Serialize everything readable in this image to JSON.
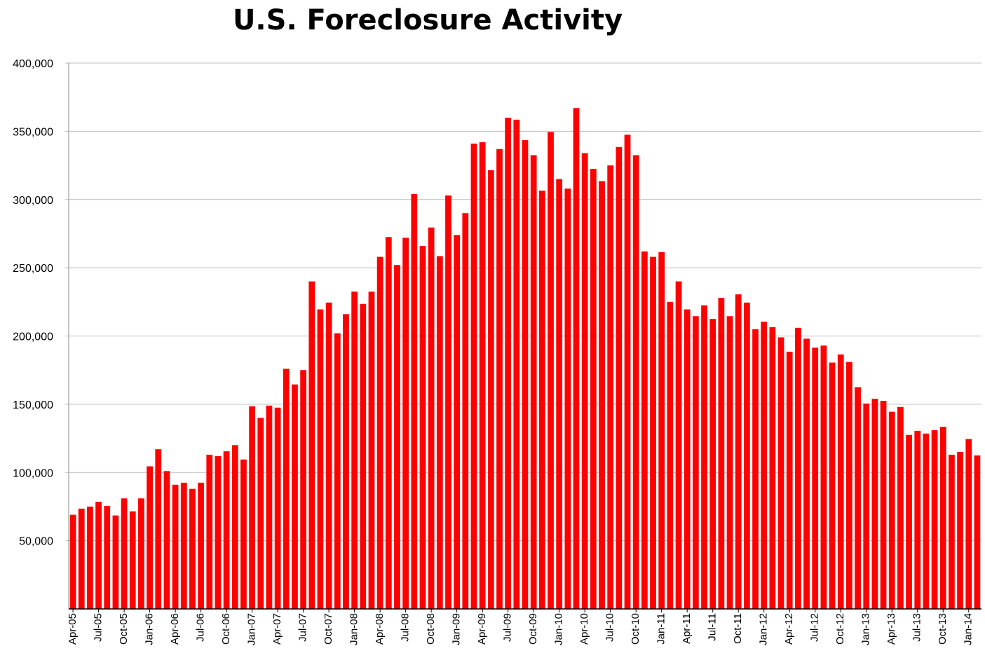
{
  "chart_data": {
    "type": "bar",
    "title": "U.S. Foreclosure Activity",
    "xlabel": "",
    "ylabel": "",
    "ylim": [
      0,
      400000
    ],
    "yticks": [
      50000,
      100000,
      150000,
      200000,
      250000,
      300000,
      350000,
      400000
    ],
    "ytick_labels": [
      "50,000",
      "100,000",
      "150,000",
      "200,000",
      "250,000",
      "300,000",
      "350,000",
      "400,000"
    ],
    "grid": true,
    "bar_color": "#ff0000",
    "categories": [
      "Apr-05",
      "May-05",
      "Jun-05",
      "Jul-05",
      "Aug-05",
      "Sep-05",
      "Oct-05",
      "Nov-05",
      "Dec-05",
      "Jan-06",
      "Feb-06",
      "Mar-06",
      "Apr-06",
      "May-06",
      "Jun-06",
      "Jul-06",
      "Aug-06",
      "Sep-06",
      "Oct-06",
      "Nov-06",
      "Dec-06",
      "Jan-07",
      "Feb-07",
      "Mar-07",
      "Apr-07",
      "May-07",
      "Jun-07",
      "Jul-07",
      "Aug-07",
      "Sep-07",
      "Oct-07",
      "Nov-07",
      "Dec-07",
      "Jan-08",
      "Feb-08",
      "Mar-08",
      "Apr-08",
      "May-08",
      "Jun-08",
      "Jul-08",
      "Aug-08",
      "Sep-08",
      "Oct-08",
      "Nov-08",
      "Dec-08",
      "Jan-09",
      "Feb-09",
      "Mar-09",
      "Apr-09",
      "May-09",
      "Jun-09",
      "Jul-09",
      "Aug-09",
      "Sep-09",
      "Oct-09",
      "Nov-09",
      "Dec-09",
      "Jan-10",
      "Feb-10",
      "Mar-10",
      "Apr-10",
      "May-10",
      "Jun-10",
      "Jul-10",
      "Aug-10",
      "Sep-10",
      "Oct-10",
      "Nov-10",
      "Dec-10",
      "Jan-11",
      "Feb-11",
      "Mar-11",
      "Apr-11",
      "May-11",
      "Jun-11",
      "Jul-11",
      "Aug-11",
      "Sep-11",
      "Oct-11",
      "Nov-11",
      "Dec-11",
      "Jan-12",
      "Feb-12",
      "Mar-12",
      "Apr-12",
      "May-12",
      "Jun-12",
      "Jul-12",
      "Aug-12",
      "Sep-12",
      "Oct-12",
      "Nov-12",
      "Dec-12",
      "Jan-13",
      "Feb-13",
      "Mar-13",
      "Apr-13",
      "May-13",
      "Jun-13",
      "Jul-13",
      "Aug-13",
      "Sep-13",
      "Oct-13",
      "Nov-13",
      "Dec-13",
      "Jan-14",
      "Feb-14"
    ],
    "xtick_labels": [
      "Apr-05",
      "Jul-05",
      "Oct-05",
      "Jan-06",
      "Apr-06",
      "Jul-06",
      "Oct-06",
      "Jan-07",
      "Apr-07",
      "Jul-07",
      "Oct-07",
      "Jan-08",
      "Apr-08",
      "Jul-08",
      "Oct-08",
      "Jan-09",
      "Apr-09",
      "Jul-09",
      "Oct-09",
      "Jan-10",
      "Apr-10",
      "Jul-10",
      "Oct-10",
      "Jan-11",
      "Apr-11",
      "Jul-11",
      "Oct-11",
      "Jan-12",
      "Apr-12",
      "Jul-12",
      "Oct-12",
      "Jan-13",
      "Apr-13",
      "Jul-13",
      "Oct-13",
      "Jan-14"
    ],
    "values": [
      69000,
      73500,
      75000,
      78500,
      75500,
      68500,
      81000,
      71500,
      81000,
      104500,
      117000,
      101000,
      91000,
      92500,
      88000,
      92500,
      113000,
      112000,
      115500,
      120000,
      109500,
      148500,
      140000,
      149000,
      147500,
      176000,
      164500,
      175000,
      240000,
      219500,
      224500,
      202000,
      216000,
      232500,
      223500,
      232500,
      258000,
      272500,
      252000,
      272000,
      304000,
      266000,
      279500,
      258500,
      303000,
      274000,
      290000,
      341000,
      342000,
      321500,
      337000,
      360000,
      358500,
      343500,
      332500,
      306500,
      349500,
      315000,
      308000,
      367000,
      334000,
      322500,
      313500,
      325000,
      338500,
      347500,
      332500,
      262000,
      258000,
      261500,
      225000,
      240000,
      219500,
      214500,
      222500,
      212500,
      228000,
      214500,
      230500,
      224500,
      205000,
      210500,
      206500,
      199000,
      188500,
      206000,
      198000,
      191500,
      193000,
      180500,
      186500,
      181000,
      162500,
      150500,
      154000,
      152500,
      144500,
      148000,
      127500,
      130500,
      128500,
      131000,
      133500,
      113000,
      115000,
      124500,
      112500
    ]
  }
}
